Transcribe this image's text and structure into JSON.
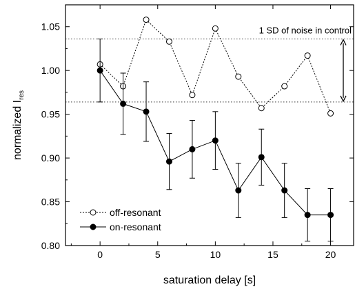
{
  "chart_data": {
    "type": "line",
    "xlabel": "saturation delay [s]",
    "ylabel": "normalized I",
    "ylabel_subscript": "res",
    "xlim": [
      -3,
      22
    ],
    "ylim": [
      0.8,
      1.075
    ],
    "xticks": [
      0,
      5,
      10,
      15,
      20
    ],
    "xtick_labels": [
      "0",
      "5",
      "10",
      "15",
      "20"
    ],
    "yticks": [
      0.8,
      0.85,
      0.9,
      0.95,
      1.0,
      1.05
    ],
    "ytick_labels": [
      "0.80",
      "0.85",
      "0.90",
      "0.95",
      "1.00",
      "1.05"
    ],
    "grid": false,
    "legend_position": "bottom-left",
    "series": [
      {
        "name": "off-resonant",
        "marker": "open-circle",
        "line_style": "dotted",
        "x": [
          0,
          2,
          4,
          6,
          8,
          10,
          12,
          14,
          16,
          18,
          20
        ],
        "y": [
          1.007,
          0.982,
          1.058,
          1.033,
          0.972,
          1.048,
          0.993,
          0.957,
          0.982,
          1.017,
          0.951
        ]
      },
      {
        "name": "on-resonant",
        "marker": "filled-circle",
        "line_style": "solid",
        "x": [
          0,
          2,
          4,
          6,
          8,
          10,
          12,
          14,
          16,
          18,
          20
        ],
        "y": [
          1.0,
          0.962,
          0.953,
          0.896,
          0.91,
          0.92,
          0.863,
          0.901,
          0.863,
          0.835,
          0.835
        ],
        "error": [
          0.036,
          0.035,
          0.034,
          0.032,
          0.033,
          0.033,
          0.031,
          0.032,
          0.031,
          0.03,
          0.03
        ]
      }
    ],
    "reference_lines": [
      1.036,
      0.964
    ],
    "annotation": {
      "text": "1 SD of noise in control",
      "arrow_range": [
        0.964,
        1.036
      ]
    }
  }
}
